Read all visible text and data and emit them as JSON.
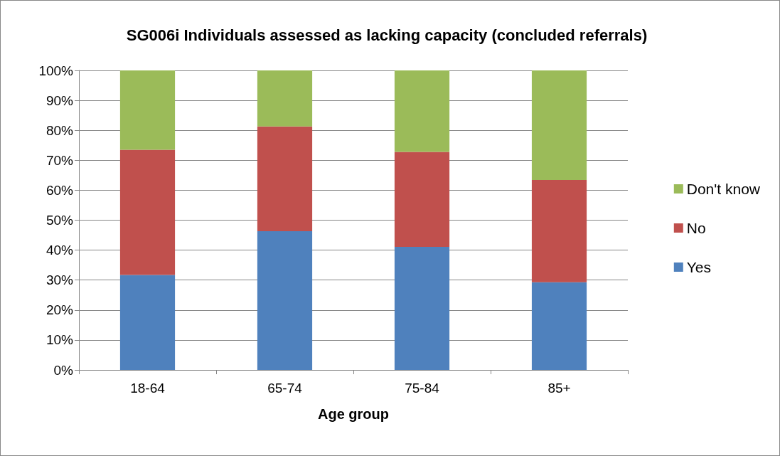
{
  "chart_data": {
    "type": "bar",
    "title": "SG006i Individuals assessed as lacking capacity (concluded referrals)",
    "xlabel": "Age group",
    "categories": [
      "18-64",
      "65-74",
      "75-84",
      "85+"
    ],
    "stacked": true,
    "series": [
      {
        "name": "Yes",
        "color": "#4f81bd",
        "values": [
          31.7,
          46.3,
          41.1,
          29.3
        ]
      },
      {
        "name": "No",
        "color": "#c0504d",
        "values": [
          41.8,
          35.0,
          31.7,
          34.1
        ]
      },
      {
        "name": "Don't know",
        "color": "#9bbb59",
        "values": [
          26.5,
          18.7,
          27.2,
          36.6
        ]
      }
    ],
    "ylim": [
      0,
      100
    ],
    "yticks": [
      {
        "value": 0,
        "label": "0%"
      },
      {
        "value": 10,
        "label": "10%"
      },
      {
        "value": 20,
        "label": "20%"
      },
      {
        "value": 30,
        "label": "30%"
      },
      {
        "value": 40,
        "label": "40%"
      },
      {
        "value": 50,
        "label": "50%"
      },
      {
        "value": 60,
        "label": "60%"
      },
      {
        "value": 70,
        "label": "70%"
      },
      {
        "value": 80,
        "label": "80%"
      },
      {
        "value": 90,
        "label": "90%"
      },
      {
        "value": 100,
        "label": "100%"
      }
    ],
    "grid": "y",
    "legend": "right"
  }
}
